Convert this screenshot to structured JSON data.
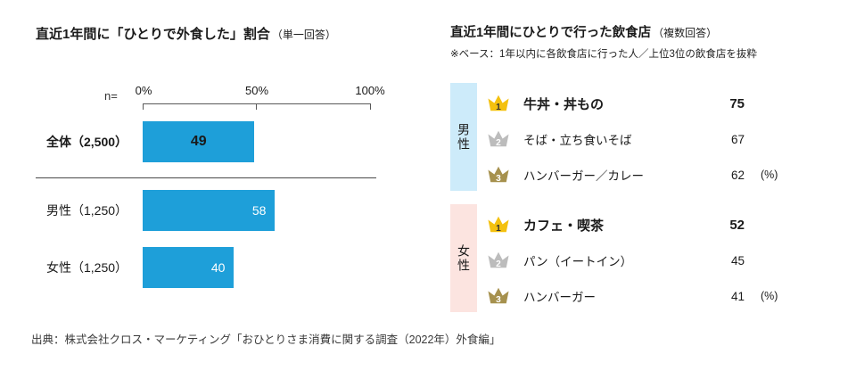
{
  "page": {
    "source": "出典：株式会社クロス・マーケティング「おひとりさま消費に関する調査（2022年）外食編」"
  },
  "colors": {
    "bar": "#1E9FD9",
    "male_tab_bg": "#CDEBFA",
    "female_tab_bg": "#FCE4E0"
  },
  "crowns": [
    {
      "color": "#F4C10F",
      "num_color": "#333333"
    },
    {
      "color": "#BCBCBC",
      "num_color": "#FFFFFF"
    },
    {
      "color": "#A6914E",
      "num_color": "#FFFFFF"
    }
  ],
  "chart_data": [
    {
      "type": "bar",
      "orientation": "horizontal",
      "title": "直近1年間に「ひとりで外食した」割合",
      "title_note": "（単一回答）",
      "n_label": "n=",
      "categories": [
        "全体（2,500）",
        "男性（1,250）",
        "女性（1,250）"
      ],
      "values": [
        49,
        58,
        40
      ],
      "unit": "%",
      "xlim": [
        0,
        100
      ],
      "xticks": [
        "0%",
        "50%",
        "100%"
      ],
      "grid": false,
      "legend": false
    },
    {
      "type": "table",
      "title": "直近1年間にひとりで行った飲食店",
      "title_note": "（複数回答）",
      "base_note": "※ベース：1年以内に各飲食店に行った人／上位3位の飲食店を抜粋",
      "unit_label": "(%)",
      "groups": [
        {
          "name": "男性",
          "items": [
            {
              "rank": "1",
              "label": "牛丼・丼もの",
              "value": 75
            },
            {
              "rank": "2",
              "label": "そば・立ち食いそば",
              "value": 67
            },
            {
              "rank": "3",
              "label": "ハンバーガー／カレー",
              "value": 62
            }
          ]
        },
        {
          "name": "女性",
          "items": [
            {
              "rank": "1",
              "label": "カフェ・喫茶",
              "value": 52
            },
            {
              "rank": "2",
              "label": "パン（イートイン）",
              "value": 45
            },
            {
              "rank": "3",
              "label": "ハンバーガー",
              "value": 41
            }
          ]
        }
      ]
    }
  ]
}
